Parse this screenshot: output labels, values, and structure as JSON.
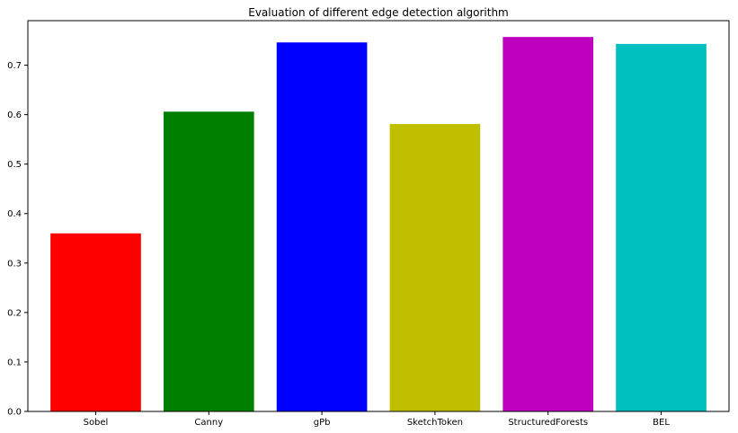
{
  "chart_data": {
    "type": "bar",
    "title": "Evaluation of different edge detection algorithm",
    "xlabel": "",
    "ylabel": "",
    "categories": [
      "Sobel",
      "Canny",
      "gPb",
      "SketchToken",
      "StructuredForests",
      "BEL"
    ],
    "values": [
      0.36,
      0.606,
      0.746,
      0.581,
      0.757,
      0.743
    ],
    "colors": [
      "#ff0000",
      "#008000",
      "#0000ff",
      "#bfbf00",
      "#bf00bf",
      "#00bfbf"
    ],
    "ylim": [
      0,
      0.79
    ],
    "yticks": [
      0.0,
      0.1,
      0.2,
      0.3,
      0.4,
      0.5,
      0.6,
      0.7
    ],
    "ytick_labels": [
      "0.0",
      "0.1",
      "0.2",
      "0.3",
      "0.4",
      "0.5",
      "0.6",
      "0.7"
    ],
    "grid": false,
    "legend": "none"
  }
}
